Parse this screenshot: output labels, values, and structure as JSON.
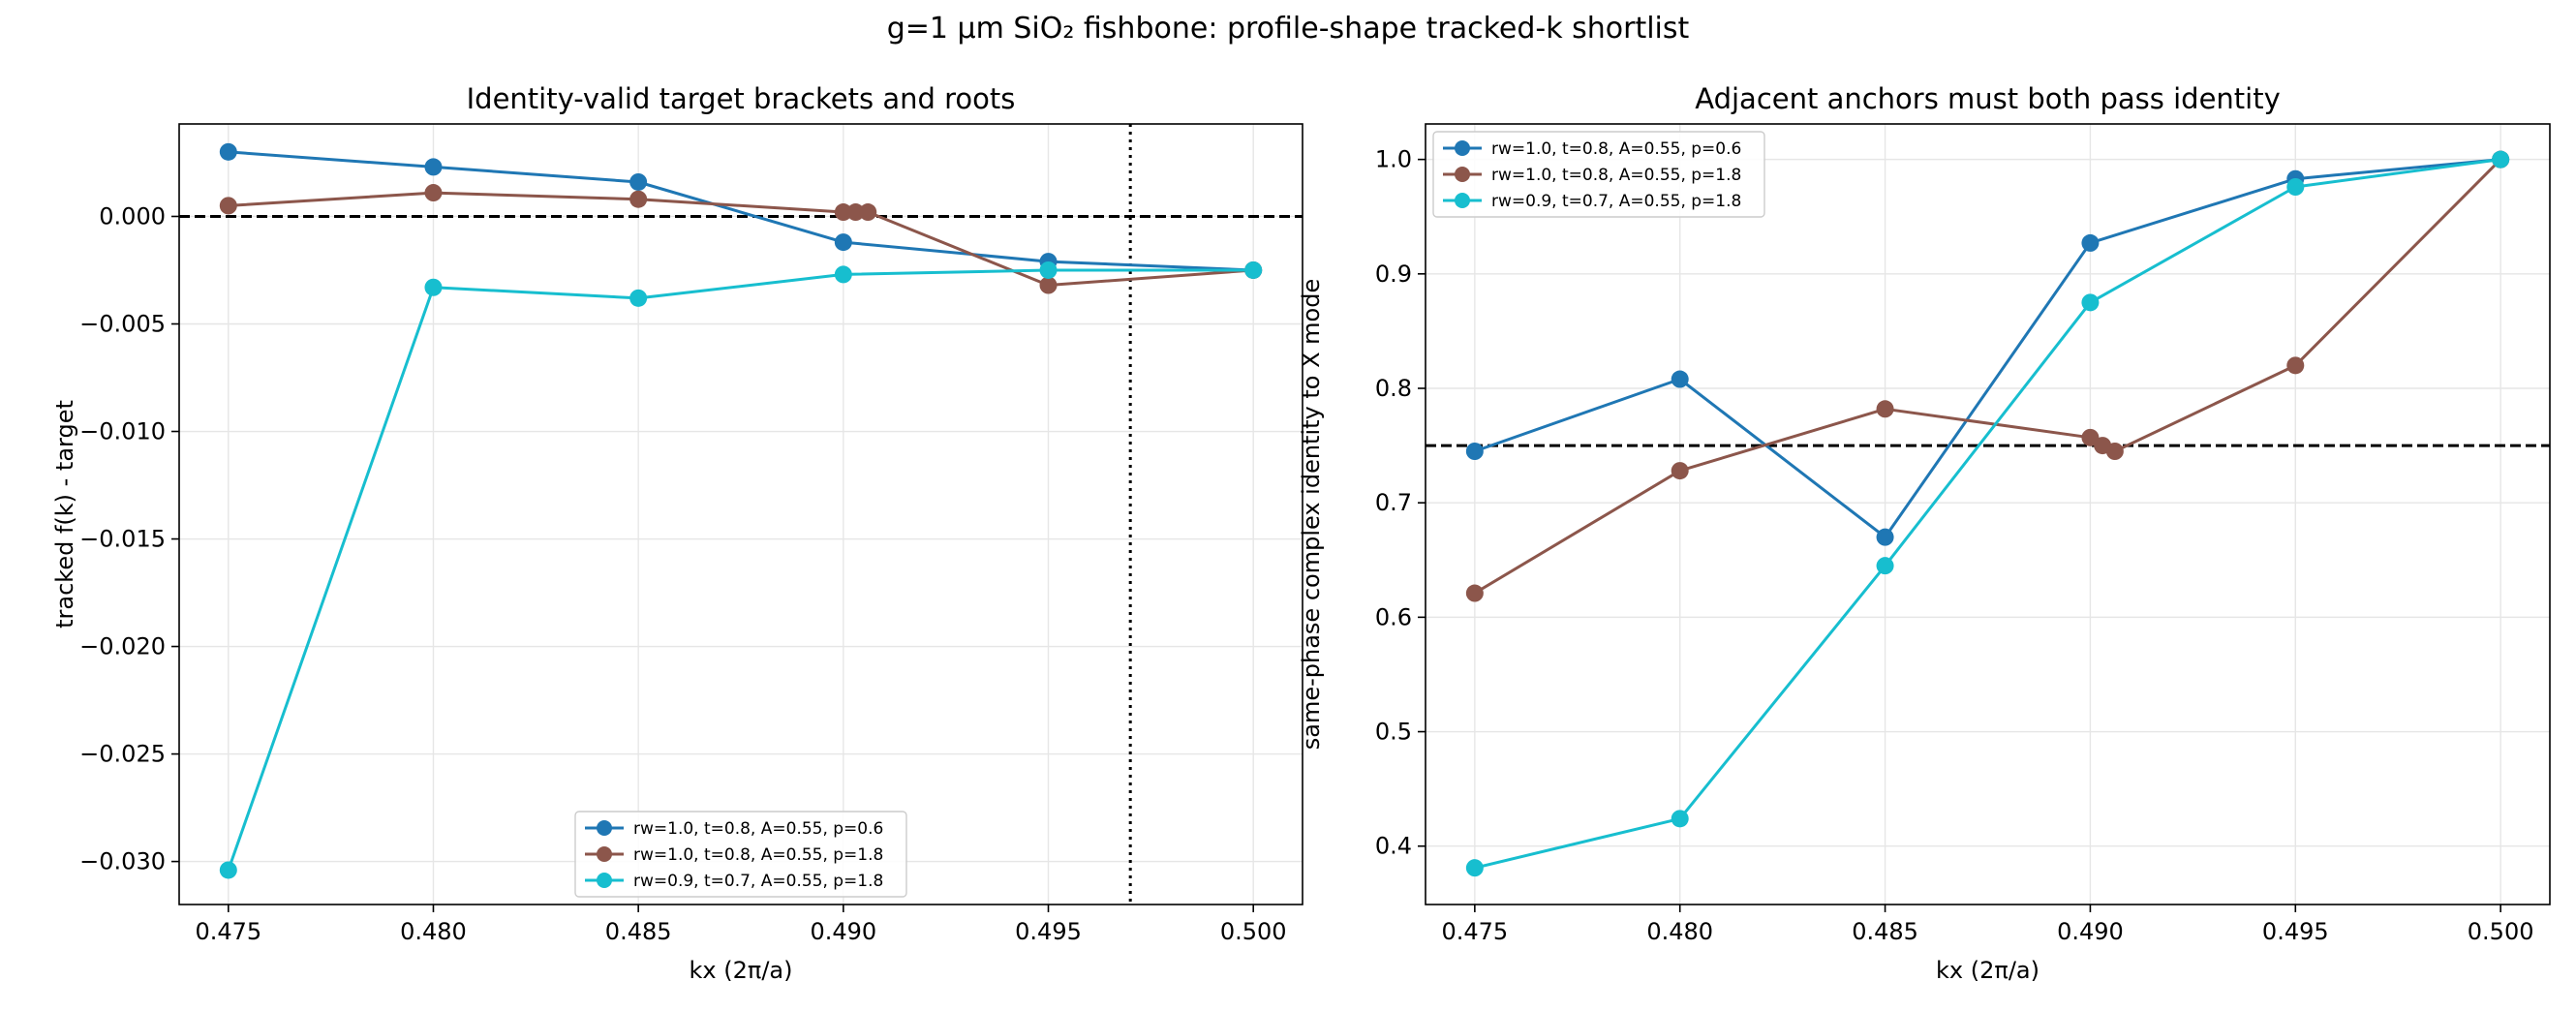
{
  "figure_title": "g=1 µm SiO₂ fishbone: profile-shape tracked-k shortlist",
  "colors": {
    "blue": "#1f77b4",
    "brown": "#8c564b",
    "cyan": "#17becf"
  },
  "chart_data": [
    {
      "type": "line",
      "title": "Identity-valid target brackets and roots",
      "xlabel": "kx (2π/a)",
      "ylabel": "tracked f(k) - target",
      "xlim": [
        0.4738,
        0.5012
      ],
      "ylim": [
        -0.032,
        0.0043
      ],
      "xticks": [
        0.475,
        0.48,
        0.485,
        0.49,
        0.495,
        0.5
      ],
      "xtick_labels": [
        "0.475",
        "0.480",
        "0.485",
        "0.490",
        "0.495",
        "0.500"
      ],
      "yticks": [
        0.0,
        -0.005,
        -0.01,
        -0.015,
        -0.02,
        -0.025,
        -0.03
      ],
      "ytick_labels": [
        "0.000",
        "−0.005",
        "−0.010",
        "−0.015",
        "−0.020",
        "−0.025",
        "−0.030"
      ],
      "grid": true,
      "legend_position": "lower-center",
      "reference_lines": [
        {
          "orientation": "horizontal",
          "value": 0.0,
          "style": "dashed"
        },
        {
          "orientation": "vertical",
          "value": 0.497,
          "style": "dotted"
        }
      ],
      "series": [
        {
          "name": "rw=1.0, t=0.8, A=0.55, p=0.6",
          "color": "#1f77b4",
          "x": [
            0.475,
            0.48,
            0.485,
            0.49,
            0.495,
            0.5
          ],
          "y": [
            0.003,
            0.0023,
            0.0016,
            -0.0012,
            -0.0021,
            -0.0025
          ]
        },
        {
          "name": "rw=1.0, t=0.8, A=0.55, p=1.8",
          "color": "#8c564b",
          "x": [
            0.475,
            0.48,
            0.485,
            0.49,
            0.4903,
            0.4906,
            0.495,
            0.5
          ],
          "y": [
            0.0005,
            0.0011,
            0.0008,
            0.0002,
            0.0002,
            0.0002,
            -0.0032,
            -0.0025
          ]
        },
        {
          "name": "rw=0.9, t=0.7, A=0.55, p=1.8",
          "color": "#17becf",
          "x": [
            0.475,
            0.48,
            0.485,
            0.49,
            0.495,
            0.5
          ],
          "y": [
            -0.0304,
            -0.0033,
            -0.0038,
            -0.0027,
            -0.0025,
            -0.0025
          ]
        }
      ]
    },
    {
      "type": "line",
      "title": "Adjacent anchors must both pass identity",
      "xlabel": "kx (2π/a)",
      "ylabel": "same-phase complex identity to X mode",
      "xlim": [
        0.4738,
        0.5012
      ],
      "ylim": [
        0.349,
        1.031
      ],
      "xticks": [
        0.475,
        0.48,
        0.485,
        0.49,
        0.495,
        0.5
      ],
      "xtick_labels": [
        "0.475",
        "0.480",
        "0.485",
        "0.490",
        "0.495",
        "0.500"
      ],
      "yticks": [
        0.4,
        0.5,
        0.6,
        0.7,
        0.8,
        0.9,
        1.0
      ],
      "ytick_labels": [
        "0.4",
        "0.5",
        "0.6",
        "0.7",
        "0.8",
        "0.9",
        "1.0"
      ],
      "grid": true,
      "legend_position": "upper-left",
      "reference_lines": [
        {
          "orientation": "horizontal",
          "value": 0.75,
          "style": "dashed"
        }
      ],
      "series": [
        {
          "name": "rw=1.0, t=0.8, A=0.55, p=0.6",
          "color": "#1f77b4",
          "x": [
            0.475,
            0.48,
            0.485,
            0.49,
            0.495,
            0.5
          ],
          "y": [
            0.745,
            0.808,
            0.67,
            0.927,
            0.983,
            1.0
          ]
        },
        {
          "name": "rw=1.0, t=0.8, A=0.55, p=1.8",
          "color": "#8c564b",
          "x": [
            0.475,
            0.48,
            0.485,
            0.49,
            0.4903,
            0.4906,
            0.495,
            0.5
          ],
          "y": [
            0.621,
            0.728,
            0.782,
            0.757,
            0.75,
            0.745,
            0.82,
            1.0
          ]
        },
        {
          "name": "rw=0.9, t=0.7, A=0.55, p=1.8",
          "color": "#17becf",
          "x": [
            0.475,
            0.48,
            0.485,
            0.49,
            0.495,
            0.5
          ],
          "y": [
            0.381,
            0.424,
            0.645,
            0.875,
            0.976,
            1.0
          ]
        }
      ]
    }
  ]
}
